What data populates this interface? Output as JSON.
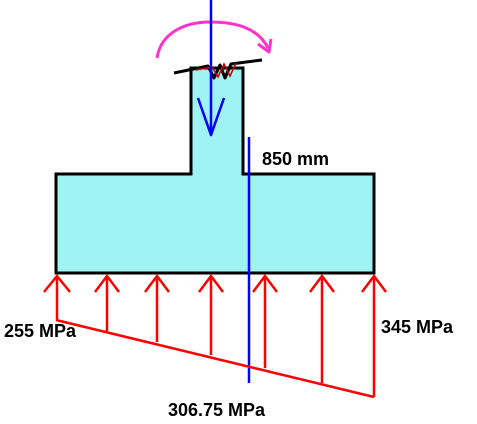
{
  "labels": {
    "dimension": "850 mm",
    "pressure_left": "255 MPa",
    "pressure_right": "345 MPa",
    "pressure_mid": "306.75 MPa"
  },
  "colors": {
    "footing_fill": "#9ff3f3",
    "outline": "#000000",
    "pressure": "#ff0000",
    "load_line": "#0000ff",
    "moment": "#ff33cc",
    "squiggle": "#cc0000"
  },
  "icons": {
    "moment": "curved-arrow-icon",
    "load": "down-arrow-icon",
    "pressure": "up-arrow-icon"
  }
}
